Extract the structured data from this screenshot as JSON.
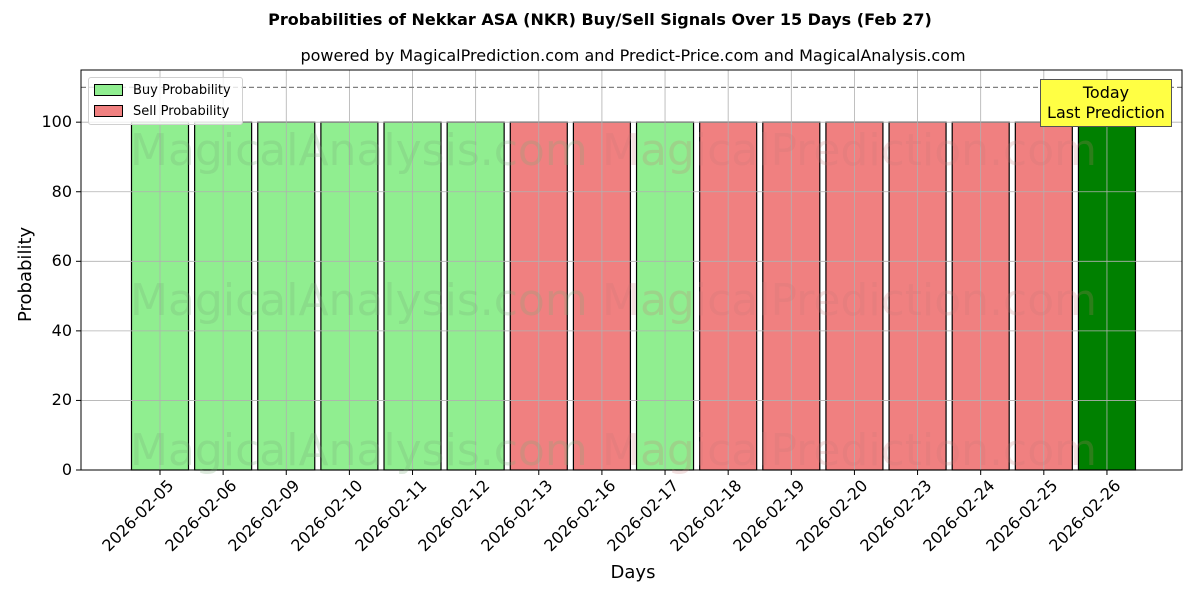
{
  "chart_data": {
    "type": "bar",
    "title": "Probabilities of Nekkar ASA (NKR) Buy/Sell Signals Over 15 Days (Feb 27)",
    "subtitle": "powered by MagicalPrediction.com and Predict-Price.com and MagicalAnalysis.com",
    "xlabel": "Days",
    "ylabel": "Probability",
    "ylim": [
      0,
      115
    ],
    "yticks": [
      0,
      20,
      40,
      60,
      80,
      100
    ],
    "grid": true,
    "legend_position": "upper left",
    "reference_line": {
      "y": 110,
      "style": "dashed",
      "color": "#808080"
    },
    "categories": [
      "2026-02-05",
      "2026-02-06",
      "2026-02-09",
      "2026-02-10",
      "2026-02-11",
      "2026-02-12",
      "2026-02-13",
      "2026-02-16",
      "2026-02-17",
      "2026-02-18",
      "2026-02-19",
      "2026-02-20",
      "2026-02-23",
      "2026-02-24",
      "2026-02-25",
      "2026-02-26"
    ],
    "signals": [
      "buy",
      "buy",
      "buy",
      "buy",
      "buy",
      "buy",
      "sell",
      "sell",
      "buy",
      "sell",
      "sell",
      "sell",
      "sell",
      "sell",
      "sell",
      "today"
    ],
    "values": [
      100,
      100,
      100,
      100,
      100,
      100,
      100,
      100,
      100,
      100,
      100,
      100,
      100,
      100,
      100,
      100
    ],
    "series": [
      {
        "name": "Buy Probability",
        "color": "#90ee90"
      },
      {
        "name": "Sell Probability",
        "color": "#f08080"
      }
    ],
    "today_color": "#008000",
    "annotation": {
      "line1": "Today",
      "line2": "Last Prediction",
      "background": "#ffff44"
    },
    "watermarks": [
      "MagicalAnalysis.com",
      "MagicalPrediction.com"
    ]
  }
}
